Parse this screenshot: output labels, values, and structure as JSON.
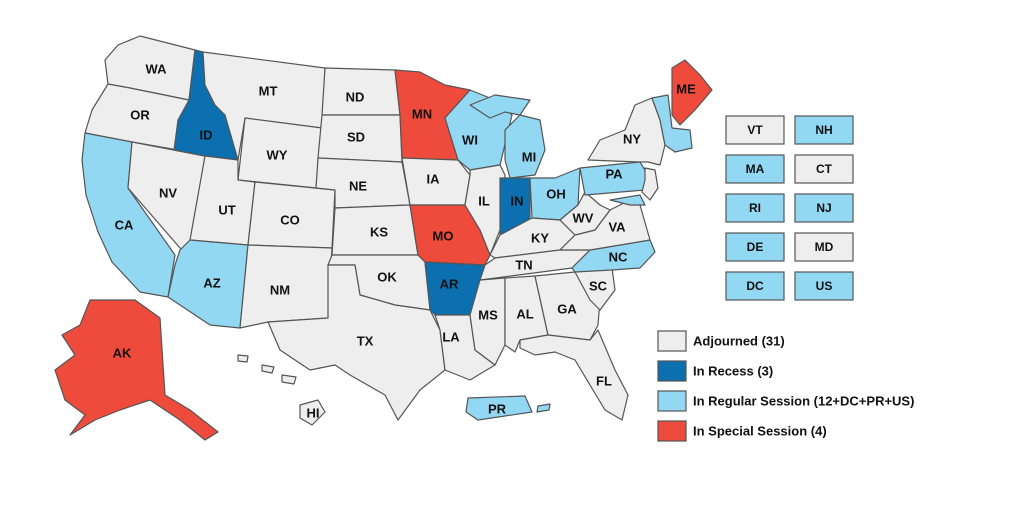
{
  "colors": {
    "adjourned": "#eeeeee",
    "recess": "#0b6fb0",
    "regular": "#92d8f3",
    "special": "#ef4b3d",
    "border": "#555555"
  },
  "states": {
    "WA": {
      "label": "WA",
      "status": "adjourned"
    },
    "OR": {
      "label": "OR",
      "status": "adjourned"
    },
    "CA": {
      "label": "CA",
      "status": "regular"
    },
    "NV": {
      "label": "NV",
      "status": "adjourned"
    },
    "ID": {
      "label": "ID",
      "status": "recess"
    },
    "MT": {
      "label": "MT",
      "status": "adjourned"
    },
    "WY": {
      "label": "WY",
      "status": "adjourned"
    },
    "UT": {
      "label": "UT",
      "status": "adjourned"
    },
    "AZ": {
      "label": "AZ",
      "status": "regular"
    },
    "CO": {
      "label": "CO",
      "status": "adjourned"
    },
    "NM": {
      "label": "NM",
      "status": "adjourned"
    },
    "ND": {
      "label": "ND",
      "status": "adjourned"
    },
    "SD": {
      "label": "SD",
      "status": "adjourned"
    },
    "NE": {
      "label": "NE",
      "status": "adjourned"
    },
    "KS": {
      "label": "KS",
      "status": "adjourned"
    },
    "OK": {
      "label": "OK",
      "status": "adjourned"
    },
    "TX": {
      "label": "TX",
      "status": "adjourned"
    },
    "MN": {
      "label": "MN",
      "status": "special"
    },
    "IA": {
      "label": "IA",
      "status": "adjourned"
    },
    "MO": {
      "label": "MO",
      "status": "special"
    },
    "AR": {
      "label": "AR",
      "status": "recess"
    },
    "LA": {
      "label": "LA",
      "status": "adjourned"
    },
    "WI": {
      "label": "WI",
      "status": "regular"
    },
    "IL": {
      "label": "IL",
      "status": "adjourned"
    },
    "MI": {
      "label": "MI",
      "status": "regular"
    },
    "IN": {
      "label": "IN",
      "status": "recess"
    },
    "OH": {
      "label": "OH",
      "status": "regular"
    },
    "KY": {
      "label": "KY",
      "status": "adjourned"
    },
    "TN": {
      "label": "TN",
      "status": "adjourned"
    },
    "MS": {
      "label": "MS",
      "status": "adjourned"
    },
    "AL": {
      "label": "AL",
      "status": "adjourned"
    },
    "GA": {
      "label": "GA",
      "status": "adjourned"
    },
    "FL": {
      "label": "FL",
      "status": "adjourned"
    },
    "SC": {
      "label": "SC",
      "status": "adjourned"
    },
    "NC": {
      "label": "NC",
      "status": "regular"
    },
    "VA": {
      "label": "VA",
      "status": "adjourned"
    },
    "WV": {
      "label": "WV",
      "status": "adjourned"
    },
    "PA": {
      "label": "PA",
      "status": "regular"
    },
    "NY": {
      "label": "NY",
      "status": "adjourned"
    },
    "ME": {
      "label": "ME",
      "status": "special"
    },
    "AK": {
      "label": "AK",
      "status": "special"
    },
    "HI": {
      "label": "HI",
      "status": "adjourned"
    },
    "PR": {
      "label": "PR",
      "status": "regular"
    }
  },
  "small_boxes": [
    {
      "label": "VT",
      "status": "adjourned"
    },
    {
      "label": "NH",
      "status": "regular"
    },
    {
      "label": "MA",
      "status": "regular"
    },
    {
      "label": "CT",
      "status": "adjourned"
    },
    {
      "label": "RI",
      "status": "regular"
    },
    {
      "label": "NJ",
      "status": "regular"
    },
    {
      "label": "DE",
      "status": "regular"
    },
    {
      "label": "MD",
      "status": "adjourned"
    },
    {
      "label": "DC",
      "status": "regular"
    },
    {
      "label": "US",
      "status": "regular"
    }
  ],
  "legend": [
    {
      "label": "Adjourned (31)",
      "status": "adjourned"
    },
    {
      "label": "In Recess (3)",
      "status": "recess"
    },
    {
      "label": "In Regular Session (12+DC+PR+US)",
      "status": "regular"
    },
    {
      "label": "In Special Session (4)",
      "status": "special"
    }
  ]
}
